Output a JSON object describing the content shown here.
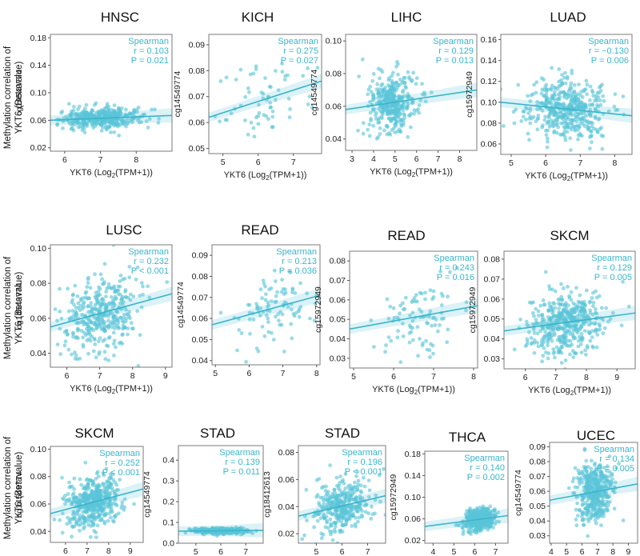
{
  "figure": {
    "row_y_label_line1": "Methylation correlation  of",
    "row_y_label_line2": "YKT6 (Betavalue)",
    "x_label_prefix": "YKT6 (Log",
    "x_label_sub": "2",
    "x_label_suffix": "(TPM+1))",
    "stat_method": "Spearman"
  },
  "colors": {
    "point": "#5bc5d8",
    "line": "#3ab5cc",
    "band": "#5bc5d8",
    "text": "#3ab5cc"
  },
  "chart_data": [
    {
      "type": "scatter",
      "title": "HNSC",
      "ylabel": "cg14549774",
      "xlabel": "YKT6 (Log2(TPM+1))",
      "xticks": [
        6,
        7,
        8
      ],
      "yticks": [
        0.02,
        0.06,
        0.1,
        0.14,
        0.18
      ],
      "ytick_labels": [
        "0.02",
        "0.06",
        "0.10",
        "0.14",
        "0.18"
      ],
      "xlim": [
        5.6,
        9.0
      ],
      "ylim": [
        0.015,
        0.185
      ],
      "r": "r = 0.103",
      "p": "P = 0.021",
      "fit": [
        0.06,
        0.067
      ],
      "n": 420,
      "cx": 7.0,
      "sx": 0.55,
      "cy": 0.062,
      "sy": 0.008,
      "x_label_shown": true
    },
    {
      "type": "scatter",
      "title": "KICH",
      "ylabel": "cg14549774",
      "xlabel": "YKT6 (Log2(TPM+1))",
      "xticks": [
        5,
        6,
        7
      ],
      "yticks": [
        0.05,
        0.06,
        0.07,
        0.08,
        0.09
      ],
      "ytick_labels": [
        "0.05",
        "0.06",
        "0.07",
        "0.08",
        "0.09"
      ],
      "xlim": [
        4.6,
        7.8
      ],
      "ylim": [
        0.048,
        0.094
      ],
      "r": "r = 0.275",
      "p": "P = 0.027",
      "fit": [
        0.062,
        0.076
      ],
      "n": 65,
      "cx": 6.2,
      "sx": 0.6,
      "cy": 0.067,
      "sy": 0.008,
      "x_label_shown": true
    },
    {
      "type": "scatter",
      "title": "LIHC",
      "ylabel": "cg14549774",
      "xlabel": "YKT6 (Log2(TPM+1))",
      "xticks": [
        3,
        4,
        5,
        6,
        7,
        8
      ],
      "yticks": [
        0.04,
        0.06,
        0.08,
        0.1
      ],
      "ytick_labels": [
        "0.04",
        "0.06",
        "0.08",
        "0.10"
      ],
      "xlim": [
        2.7,
        8.8
      ],
      "ylim": [
        0.033,
        0.104
      ],
      "r": "r = 0.129",
      "p": "P = 0.013",
      "fit": [
        0.058,
        0.07
      ],
      "n": 370,
      "cx": 4.9,
      "sx": 0.6,
      "cy": 0.063,
      "sy": 0.01,
      "x_label_shown": true
    },
    {
      "type": "scatter",
      "title": "LUAD",
      "ylabel": "cg15972949",
      "xlabel": "YKT6 (Log2(TPM+1))",
      "xticks": [
        5,
        6,
        7,
        8
      ],
      "yticks": [
        0.06,
        0.08,
        0.1,
        0.12,
        0.14,
        0.16
      ],
      "ytick_labels": [
        "0.06",
        "0.08",
        "0.10",
        "0.12",
        "0.14",
        "0.16"
      ],
      "xlim": [
        4.7,
        8.5
      ],
      "ylim": [
        0.05,
        0.165
      ],
      "r": "r = −0.130",
      "p": "P = 0.006",
      "fit": [
        0.1,
        0.087
      ],
      "n": 450,
      "cx": 6.6,
      "sx": 0.55,
      "cy": 0.094,
      "sy": 0.016,
      "x_label_shown": true
    },
    {
      "type": "scatter",
      "title": "LUSC",
      "ylabel": "cg14549774",
      "xlabel": "YKT6 (Log2(TPM+1))",
      "xticks": [
        6,
        7,
        8,
        9
      ],
      "yticks": [
        0.04,
        0.06,
        0.08,
        0.1
      ],
      "ytick_labels": [
        "0.04",
        "0.06",
        "0.08",
        "0.10"
      ],
      "xlim": [
        5.5,
        9.2
      ],
      "ylim": [
        0.032,
        0.102
      ],
      "r": "r = 0.232",
      "p": "P < 0.001",
      "fit": [
        0.055,
        0.074
      ],
      "n": 380,
      "cx": 7.0,
      "sx": 0.6,
      "cy": 0.062,
      "sy": 0.012,
      "x_label_shown": true
    },
    {
      "type": "scatter",
      "title": "READ",
      "ylabel": "cg14549774",
      "xlabel": "YKT6 (Log2(TPM+1))",
      "xticks": [
        5,
        6,
        7,
        8
      ],
      "yticks": [
        0.04,
        0.05,
        0.06,
        0.07,
        0.08,
        0.09
      ],
      "ytick_labels": [
        "0.04",
        "0.05",
        "0.06",
        "0.07",
        "0.08",
        "0.09"
      ],
      "xlim": [
        4.9,
        8.1
      ],
      "ylim": [
        0.038,
        0.095
      ],
      "r": "r = 0.213",
      "p": "P = 0.036",
      "fit": [
        0.057,
        0.071
      ],
      "n": 95,
      "cx": 6.7,
      "sx": 0.55,
      "cy": 0.064,
      "sy": 0.01,
      "x_label_shown": false
    },
    {
      "type": "scatter",
      "title": "READ",
      "ylabel": "cg15972949",
      "xlabel": "YKT6 (Log2(TPM+1))",
      "xticks": [
        5,
        6,
        7,
        8
      ],
      "yticks": [
        0.03,
        0.04,
        0.05,
        0.06,
        0.07,
        0.08
      ],
      "ytick_labels": [
        "0.03",
        "0.04",
        "0.05",
        "0.06",
        "0.07",
        "0.08"
      ],
      "xlim": [
        4.9,
        8.1
      ],
      "ylim": [
        0.025,
        0.085
      ],
      "r": "r = 0.243",
      "p": "P = 0.016",
      "fit": [
        0.045,
        0.057
      ],
      "n": 95,
      "cx": 6.7,
      "sx": 0.55,
      "cy": 0.051,
      "sy": 0.011,
      "x_label_shown": true
    },
    {
      "type": "scatter",
      "title": "SKCM",
      "ylabel": "cg15972949",
      "xlabel": "YKT6 (Log2(TPM+1))",
      "xticks": [
        6,
        7,
        8,
        9
      ],
      "yticks": [
        0.03,
        0.04,
        0.05,
        0.06,
        0.07,
        0.08
      ],
      "ytick_labels": [
        "0.03",
        "0.04",
        "0.05",
        "0.06",
        "0.07",
        "0.08"
      ],
      "xlim": [
        5.3,
        9.6
      ],
      "ylim": [
        0.025,
        0.084
      ],
      "r": "r = 0.129",
      "p": "P = 0.005",
      "fit": [
        0.044,
        0.053
      ],
      "n": 460,
      "cx": 7.3,
      "sx": 0.6,
      "cy": 0.049,
      "sy": 0.009,
      "x_label_shown": true
    },
    {
      "type": "scatter",
      "title": "SKCM",
      "ylabel": "cg14549774",
      "xlabel": "YKT6 (Log2(TPM+1))",
      "xticks": [
        6,
        7,
        8,
        9
      ],
      "yticks": [
        0.04,
        0.06,
        0.08,
        0.1
      ],
      "ytick_labels": [
        "0.04",
        "0.06",
        "0.08",
        "0.10"
      ],
      "xlim": [
        5.3,
        9.6
      ],
      "ylim": [
        0.032,
        0.102
      ],
      "r": "r = 0.252",
      "p": "P < 0.001",
      "fit": [
        0.053,
        0.071
      ],
      "n": 460,
      "cx": 7.3,
      "sx": 0.6,
      "cy": 0.062,
      "sy": 0.01,
      "x_label_shown": false
    },
    {
      "type": "scatter",
      "title": "STAD",
      "ylabel": "cg14549774",
      "xlabel": "YKT6 (Log2(TPM+1))",
      "xticks": [
        5,
        6,
        7
      ],
      "yticks": [
        0.0,
        0.1,
        0.2,
        0.3,
        0.4
      ],
      "ytick_labels": [
        "0.0",
        "0.1",
        "0.2",
        "0.3",
        "0.4"
      ],
      "xlim": [
        4.3,
        7.7
      ],
      "ylim": [
        0.0,
        0.47
      ],
      "r": "r = 0.139",
      "p": "P = 0.011",
      "fit": [
        0.058,
        0.062
      ],
      "n": 350,
      "cx": 6.0,
      "sx": 0.55,
      "cy": 0.06,
      "sy": 0.008,
      "x_label_shown": false
    },
    {
      "type": "scatter",
      "title": "STAD",
      "ylabel": "cg18412613",
      "xlabel": "YKT6 (Log2(TPM+1))",
      "xticks": [
        5,
        6,
        7
      ],
      "yticks": [
        0.02,
        0.04,
        0.06,
        0.08
      ],
      "ytick_labels": [
        "0.02",
        "0.04",
        "0.06",
        "0.08"
      ],
      "xlim": [
        4.3,
        7.7
      ],
      "ylim": [
        0.013,
        0.085
      ],
      "r": "r = 0.196",
      "p": "P < 0.001",
      "fit": [
        0.033,
        0.048
      ],
      "n": 350,
      "cx": 6.0,
      "sx": 0.55,
      "cy": 0.04,
      "sy": 0.011,
      "x_label_shown": false
    },
    {
      "type": "scatter",
      "title": "THCA",
      "ylabel": "cg15972949",
      "xlabel": "YKT6 (Log2(TPM+1))",
      "xticks": [
        4,
        5,
        6,
        7
      ],
      "yticks": [
        0.02,
        0.06,
        0.1,
        0.14,
        0.18
      ],
      "ytick_labels": [
        "0.02",
        "0.06",
        "0.10",
        "0.14",
        "0.18"
      ],
      "xlim": [
        3.6,
        7.6
      ],
      "ylim": [
        0.015,
        0.185
      ],
      "r": "r = 0.140",
      "p": "P = 0.002",
      "fit": [
        0.046,
        0.066
      ],
      "n": 480,
      "cx": 6.2,
      "sx": 0.35,
      "cy": 0.055,
      "sy": 0.01,
      "x_label_shown": false
    },
    {
      "type": "scatter",
      "title": "UCEC",
      "ylabel": "cg14549774",
      "xlabel": "YKT6 (Log2(TPM+1))",
      "xticks": [
        4,
        5,
        6,
        7,
        8,
        9
      ],
      "yticks": [
        0.03,
        0.04,
        0.05,
        0.06,
        0.07,
        0.08,
        0.09
      ],
      "ytick_labels": [
        "0.03",
        "0.04",
        "0.05",
        "0.06",
        "0.07",
        "0.08",
        "0.09"
      ],
      "xlim": [
        3.9,
        9.6
      ],
      "ylim": [
        0.025,
        0.093
      ],
      "r": "r = 0.134",
      "p": "P = 0.005",
      "fit": [
        0.054,
        0.065
      ],
      "n": 420,
      "cx": 6.8,
      "sx": 0.6,
      "cy": 0.059,
      "sy": 0.011,
      "x_label_shown": false
    }
  ]
}
